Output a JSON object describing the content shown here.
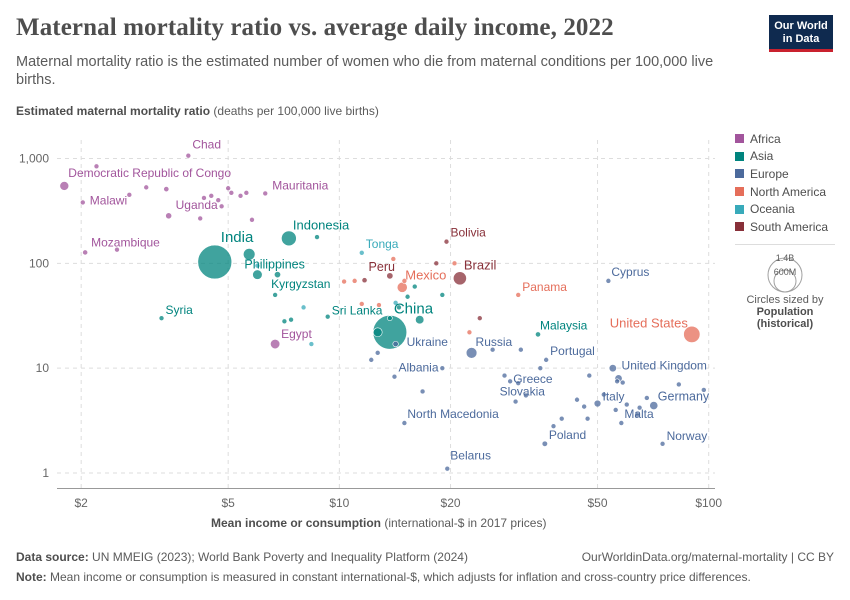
{
  "header": {
    "title": "Maternal mortality ratio vs. average daily income, 2022",
    "subtitle": "Maternal mortality ratio is the estimated number of women who die from maternal conditions per 100,000 live births.",
    "logo_line1": "Our World",
    "logo_line2": "in Data"
  },
  "axes": {
    "y_label_bold": "Estimated maternal mortality ratio",
    "y_label_rest": " (deaths per 100,000 live births)",
    "x_label_bold": "Mean income or consumption",
    "x_label_rest": " (international-$ in 2017 prices)"
  },
  "legend": {
    "items": [
      {
        "name": "Africa",
        "color": "#a2559c"
      },
      {
        "name": "Asia",
        "color": "#00847e"
      },
      {
        "name": "Europe",
        "color": "#4c6a9c"
      },
      {
        "name": "North America",
        "color": "#e56e5a"
      },
      {
        "name": "Oceania",
        "color": "#38aaba"
      },
      {
        "name": "South America",
        "color": "#883039"
      }
    ],
    "size_key_large": "1.4B",
    "size_key_small": "600M",
    "size_caption_1": "Circles sized by",
    "size_caption_2": "Population",
    "size_caption_3": "(historical)"
  },
  "footer": {
    "source_label": "Data source:",
    "source_text": " UN MMEIG (2023); World Bank Poverty and Inequality Platform (2024)",
    "url_text": "OurWorldinData.org/maternal-mortality | CC BY",
    "note_label": "Note:",
    "note_text": " Mean income or consumption is measured in constant international-$, which adjusts for inflation and cross-country price differences."
  },
  "chart_data": {
    "type": "scatter",
    "title": "Maternal mortality ratio vs. average daily income, 2022",
    "xlabel": "Mean income or consumption (international-$ in 2017 prices)",
    "ylabel": "Estimated maternal mortality ratio (deaths per 100,000 live births)",
    "x_scale": "log",
    "y_scale": "log",
    "xlim": [
      1.72,
      104
    ],
    "ylim": [
      0.72,
      1500
    ],
    "x_ticks": [
      {
        "v": 2,
        "label": "$2"
      },
      {
        "v": 5,
        "label": "$5"
      },
      {
        "v": 10,
        "label": "$10"
      },
      {
        "v": 20,
        "label": "$20"
      },
      {
        "v": 50,
        "label": "$50"
      },
      {
        "v": 100,
        "label": "$100"
      }
    ],
    "y_ticks": [
      {
        "v": 1,
        "label": "1"
      },
      {
        "v": 10,
        "label": "10"
      },
      {
        "v": 100,
        "label": "100"
      },
      {
        "v": 1000,
        "label": "1,000"
      }
    ],
    "colors": {
      "Africa": "#a2559c",
      "Asia": "#00847e",
      "Europe": "#4c6a9c",
      "North America": "#e56e5a",
      "Oceania": "#38aaba",
      "South America": "#883039"
    },
    "points": [
      {
        "name": "Democratic Republic of Congo",
        "region": "Africa",
        "x": 1.8,
        "y": 547,
        "pop": 99,
        "label": true
      },
      {
        "name": "Chad",
        "region": "Africa",
        "x": 3.9,
        "y": 1063,
        "pop": 18,
        "label": true
      },
      {
        "name": "Malawi",
        "region": "Africa",
        "x": 2.02,
        "y": 381,
        "pop": 20,
        "label": true
      },
      {
        "name": "Uganda",
        "region": "Africa",
        "x": 3.45,
        "y": 284,
        "pop": 47,
        "label": true
      },
      {
        "name": "Mozambique",
        "region": "Africa",
        "x": 2.05,
        "y": 127,
        "pop": 33,
        "label": true
      },
      {
        "name": "Mauritania",
        "region": "Africa",
        "x": 6.3,
        "y": 464,
        "pop": 5,
        "label": true
      },
      {
        "name": "Egypt",
        "region": "Africa",
        "x": 6.7,
        "y": 17,
        "pop": 111,
        "label": true
      },
      {
        "name": "",
        "region": "Africa",
        "x": 2.2,
        "y": 842,
        "pop": 12
      },
      {
        "name": "",
        "region": "Africa",
        "x": 2.7,
        "y": 450,
        "pop": 6
      },
      {
        "name": "",
        "region": "Africa",
        "x": 3.4,
        "y": 510,
        "pop": 35
      },
      {
        "name": "",
        "region": "Africa",
        "x": 4.3,
        "y": 420,
        "pop": 20
      },
      {
        "name": "",
        "region": "Africa",
        "x": 4.5,
        "y": 440,
        "pop": 25
      },
      {
        "name": "",
        "region": "Africa",
        "x": 4.7,
        "y": 400,
        "pop": 13
      },
      {
        "name": "",
        "region": "Africa",
        "x": 5.0,
        "y": 520,
        "pop": 10
      },
      {
        "name": "",
        "region": "Africa",
        "x": 5.4,
        "y": 440,
        "pop": 18
      },
      {
        "name": "",
        "region": "Africa",
        "x": 5.6,
        "y": 470,
        "pop": 16
      },
      {
        "name": "",
        "region": "Africa",
        "x": 5.1,
        "y": 470,
        "pop": 6
      },
      {
        "name": "",
        "region": "Africa",
        "x": 4.2,
        "y": 268,
        "pop": 14
      },
      {
        "name": "",
        "region": "Africa",
        "x": 5.8,
        "y": 260,
        "pop": 8
      },
      {
        "name": "",
        "region": "Africa",
        "x": 2.5,
        "y": 135,
        "pop": 8
      },
      {
        "name": "",
        "region": "Africa",
        "x": 3.0,
        "y": 530,
        "pop": 5
      },
      {
        "name": "",
        "region": "Africa",
        "x": 4.8,
        "y": 350,
        "pop": 6
      },
      {
        "name": "India",
        "region": "Asia",
        "x": 4.6,
        "y": 103,
        "pop": 1420,
        "label": true
      },
      {
        "name": "Indonesia",
        "region": "Asia",
        "x": 7.3,
        "y": 173,
        "pop": 275,
        "label": true
      },
      {
        "name": "Philippines",
        "region": "Asia",
        "x": 6.0,
        "y": 78,
        "pop": 115,
        "label": true
      },
      {
        "name": "Kyrgyzstan",
        "region": "Asia",
        "x": 6.7,
        "y": 50,
        "pop": 7,
        "label": true
      },
      {
        "name": "Syria",
        "region": "Asia",
        "x": 3.3,
        "y": 30,
        "pop": 22,
        "label": true
      },
      {
        "name": "Sri Lanka",
        "region": "Asia",
        "x": 9.3,
        "y": 31,
        "pop": 22,
        "label": true
      },
      {
        "name": "China",
        "region": "Asia",
        "x": 13.7,
        "y": 22,
        "pop": 1410,
        "label": true
      },
      {
        "name": "Malaysia",
        "region": "Asia",
        "x": 34.5,
        "y": 21,
        "pop": 34,
        "label": true
      },
      {
        "name": "",
        "region": "Asia",
        "x": 5.7,
        "y": 122,
        "pop": 170
      },
      {
        "name": "",
        "region": "Asia",
        "x": 6.8,
        "y": 78,
        "pop": 50
      },
      {
        "name": "",
        "region": "Asia",
        "x": 8.7,
        "y": 178,
        "pop": 30
      },
      {
        "name": "",
        "region": "Asia",
        "x": 7.4,
        "y": 29,
        "pop": 10
      },
      {
        "name": "",
        "region": "Asia",
        "x": 12.7,
        "y": 22,
        "pop": 99
      },
      {
        "name": "",
        "region": "Asia",
        "x": 16.5,
        "y": 29,
        "pop": 90
      },
      {
        "name": "",
        "region": "Asia",
        "x": 13.7,
        "y": 30,
        "pop": 20
      },
      {
        "name": "",
        "region": "Asia",
        "x": 15.3,
        "y": 48,
        "pop": 20
      },
      {
        "name": "",
        "region": "Asia",
        "x": 16.0,
        "y": 60,
        "pop": 8
      },
      {
        "name": "",
        "region": "Asia",
        "x": 19.0,
        "y": 50,
        "pop": 8
      },
      {
        "name": "",
        "region": "Asia",
        "x": 14.5,
        "y": 38,
        "pop": 6
      },
      {
        "name": "",
        "region": "Asia",
        "x": 7.1,
        "y": 28,
        "pop": 6
      },
      {
        "name": "Tonga",
        "region": "Oceania",
        "x": 11.5,
        "y": 126,
        "pop": 2,
        "label": true
      },
      {
        "name": "",
        "region": "Oceania",
        "x": 8.0,
        "y": 38,
        "pop": 3
      },
      {
        "name": "",
        "region": "Oceania",
        "x": 6.0,
        "y": 95,
        "pop": 10
      },
      {
        "name": "",
        "region": "Oceania",
        "x": 14.2,
        "y": 42,
        "pop": 3
      },
      {
        "name": "",
        "region": "Oceania",
        "x": 8.4,
        "y": 17,
        "pop": 2
      },
      {
        "name": "Bolivia",
        "region": "South America",
        "x": 19.5,
        "y": 161,
        "pop": 12,
        "label": true
      },
      {
        "name": "Peru",
        "region": "South America",
        "x": 11.7,
        "y": 69,
        "pop": 34,
        "label": true
      },
      {
        "name": "Brazil",
        "region": "South America",
        "x": 21.2,
        "y": 72,
        "pop": 216,
        "label": true
      },
      {
        "name": "",
        "region": "South America",
        "x": 13.7,
        "y": 76,
        "pop": 50
      },
      {
        "name": "",
        "region": "South America",
        "x": 24.0,
        "y": 30,
        "pop": 7
      },
      {
        "name": "",
        "region": "South America",
        "x": 18.3,
        "y": 100,
        "pop": 3
      },
      {
        "name": "Mexico",
        "region": "North America",
        "x": 14.8,
        "y": 59,
        "pop": 128,
        "label": true
      },
      {
        "name": "Panama",
        "region": "North America",
        "x": 30.5,
        "y": 50,
        "pop": 4,
        "label": true
      },
      {
        "name": "United States",
        "region": "North America",
        "x": 90,
        "y": 21,
        "pop": 333,
        "label": true
      },
      {
        "name": "",
        "region": "North America",
        "x": 11.0,
        "y": 68,
        "pop": 6
      },
      {
        "name": "",
        "region": "North America",
        "x": 11.5,
        "y": 41,
        "pop": 5
      },
      {
        "name": "",
        "region": "North America",
        "x": 12.8,
        "y": 40,
        "pop": 5
      },
      {
        "name": "",
        "region": "North America",
        "x": 14.0,
        "y": 110,
        "pop": 10
      },
      {
        "name": "",
        "region": "North America",
        "x": 15.0,
        "y": 68,
        "pop": 11
      },
      {
        "name": "",
        "region": "North America",
        "x": 10.3,
        "y": 67,
        "pop": 8
      },
      {
        "name": "",
        "region": "North America",
        "x": 22.5,
        "y": 22,
        "pop": 5
      },
      {
        "name": "",
        "region": "North America",
        "x": 20.5,
        "y": 100,
        "pop": 3
      },
      {
        "name": "Ukraine",
        "region": "Europe",
        "x": 14.2,
        "y": 17,
        "pop": 38,
        "label": true
      },
      {
        "name": "Albania",
        "region": "Europe",
        "x": 14.1,
        "y": 8.3,
        "pop": 3,
        "label": true
      },
      {
        "name": "Russia",
        "region": "Europe",
        "x": 22.8,
        "y": 14,
        "pop": 144,
        "label": true
      },
      {
        "name": "Portugal",
        "region": "Europe",
        "x": 36.3,
        "y": 12,
        "pop": 10,
        "label": true
      },
      {
        "name": "Greece",
        "region": "Europe",
        "x": 30.5,
        "y": 7.2,
        "pop": 10,
        "label": true
      },
      {
        "name": "Slovakia",
        "region": "Europe",
        "x": 30.0,
        "y": 4.8,
        "pop": 5,
        "label": true
      },
      {
        "name": "North Macedonia",
        "region": "Europe",
        "x": 15.0,
        "y": 3.0,
        "pop": 2,
        "label": true
      },
      {
        "name": "Belarus",
        "region": "Europe",
        "x": 19.6,
        "y": 1.1,
        "pop": 9,
        "label": true
      },
      {
        "name": "Poland",
        "region": "Europe",
        "x": 36.0,
        "y": 1.9,
        "pop": 38,
        "label": true
      },
      {
        "name": "Italy",
        "region": "Europe",
        "x": 50.0,
        "y": 4.6,
        "pop": 59,
        "label": true
      },
      {
        "name": "Malta",
        "region": "Europe",
        "x": 58.0,
        "y": 3.0,
        "pop": 0.5,
        "label": true
      },
      {
        "name": "Cyprus",
        "region": "Europe",
        "x": 53.5,
        "y": 68,
        "pop": 1.3,
        "label": true
      },
      {
        "name": "United Kingdom",
        "region": "Europe",
        "x": 57.0,
        "y": 8.0,
        "pop": 67,
        "label": true
      },
      {
        "name": "Germany",
        "region": "Europe",
        "x": 71.0,
        "y": 4.4,
        "pop": 84,
        "label": true
      },
      {
        "name": "Norway",
        "region": "Europe",
        "x": 75.0,
        "y": 1.9,
        "pop": 5.5,
        "label": true
      },
      {
        "name": "",
        "region": "Europe",
        "x": 12.2,
        "y": 12,
        "pop": 3
      },
      {
        "name": "",
        "region": "Europe",
        "x": 12.7,
        "y": 14,
        "pop": 3
      },
      {
        "name": "",
        "region": "Europe",
        "x": 16.8,
        "y": 6.0,
        "pop": 7
      },
      {
        "name": "",
        "region": "Europe",
        "x": 19.0,
        "y": 10,
        "pop": 3
      },
      {
        "name": "",
        "region": "Europe",
        "x": 26.0,
        "y": 15,
        "pop": 4
      },
      {
        "name": "",
        "region": "Europe",
        "x": 28.0,
        "y": 8.5,
        "pop": 3
      },
      {
        "name": "",
        "region": "Europe",
        "x": 29.0,
        "y": 7.5,
        "pop": 3
      },
      {
        "name": "",
        "region": "Europe",
        "x": 31.0,
        "y": 15,
        "pop": 4
      },
      {
        "name": "",
        "region": "Europe",
        "x": 32.0,
        "y": 5.5,
        "pop": 4
      },
      {
        "name": "",
        "region": "Europe",
        "x": 35.0,
        "y": 10,
        "pop": 4
      },
      {
        "name": "",
        "region": "Europe",
        "x": 38.0,
        "y": 2.8,
        "pop": 2
      },
      {
        "name": "",
        "region": "Europe",
        "x": 40.0,
        "y": 3.3,
        "pop": 2
      },
      {
        "name": "",
        "region": "Europe",
        "x": 44.0,
        "y": 5.0,
        "pop": 10
      },
      {
        "name": "",
        "region": "Europe",
        "x": 46.0,
        "y": 4.3,
        "pop": 5
      },
      {
        "name": "",
        "region": "Europe",
        "x": 47.0,
        "y": 3.3,
        "pop": 10
      },
      {
        "name": "",
        "region": "Europe",
        "x": 47.5,
        "y": 8.5,
        "pop": 3
      },
      {
        "name": "",
        "region": "Europe",
        "x": 55.0,
        "y": 10,
        "pop": 68
      },
      {
        "name": "",
        "region": "Europe",
        "x": 56.5,
        "y": 7.5,
        "pop": 18
      },
      {
        "name": "",
        "region": "Europe",
        "x": 58.5,
        "y": 7.3,
        "pop": 6
      },
      {
        "name": "",
        "region": "Europe",
        "x": 60.0,
        "y": 4.5,
        "pop": 12
      },
      {
        "name": "",
        "region": "Europe",
        "x": 64.0,
        "y": 3.6,
        "pop": 9
      },
      {
        "name": "",
        "region": "Europe",
        "x": 65.0,
        "y": 4.2,
        "pop": 10
      },
      {
        "name": "",
        "region": "Europe",
        "x": 68.0,
        "y": 5.2,
        "pop": 6
      },
      {
        "name": "",
        "region": "Europe",
        "x": 83.0,
        "y": 7.0,
        "pop": 9
      },
      {
        "name": "",
        "region": "Europe",
        "x": 97.0,
        "y": 6.2,
        "pop": 5
      },
      {
        "name": "",
        "region": "Europe",
        "x": 56.0,
        "y": 4.0,
        "pop": 1.5
      },
      {
        "name": "",
        "region": "Europe",
        "x": 52.0,
        "y": 5.6,
        "pop": 3
      }
    ]
  }
}
